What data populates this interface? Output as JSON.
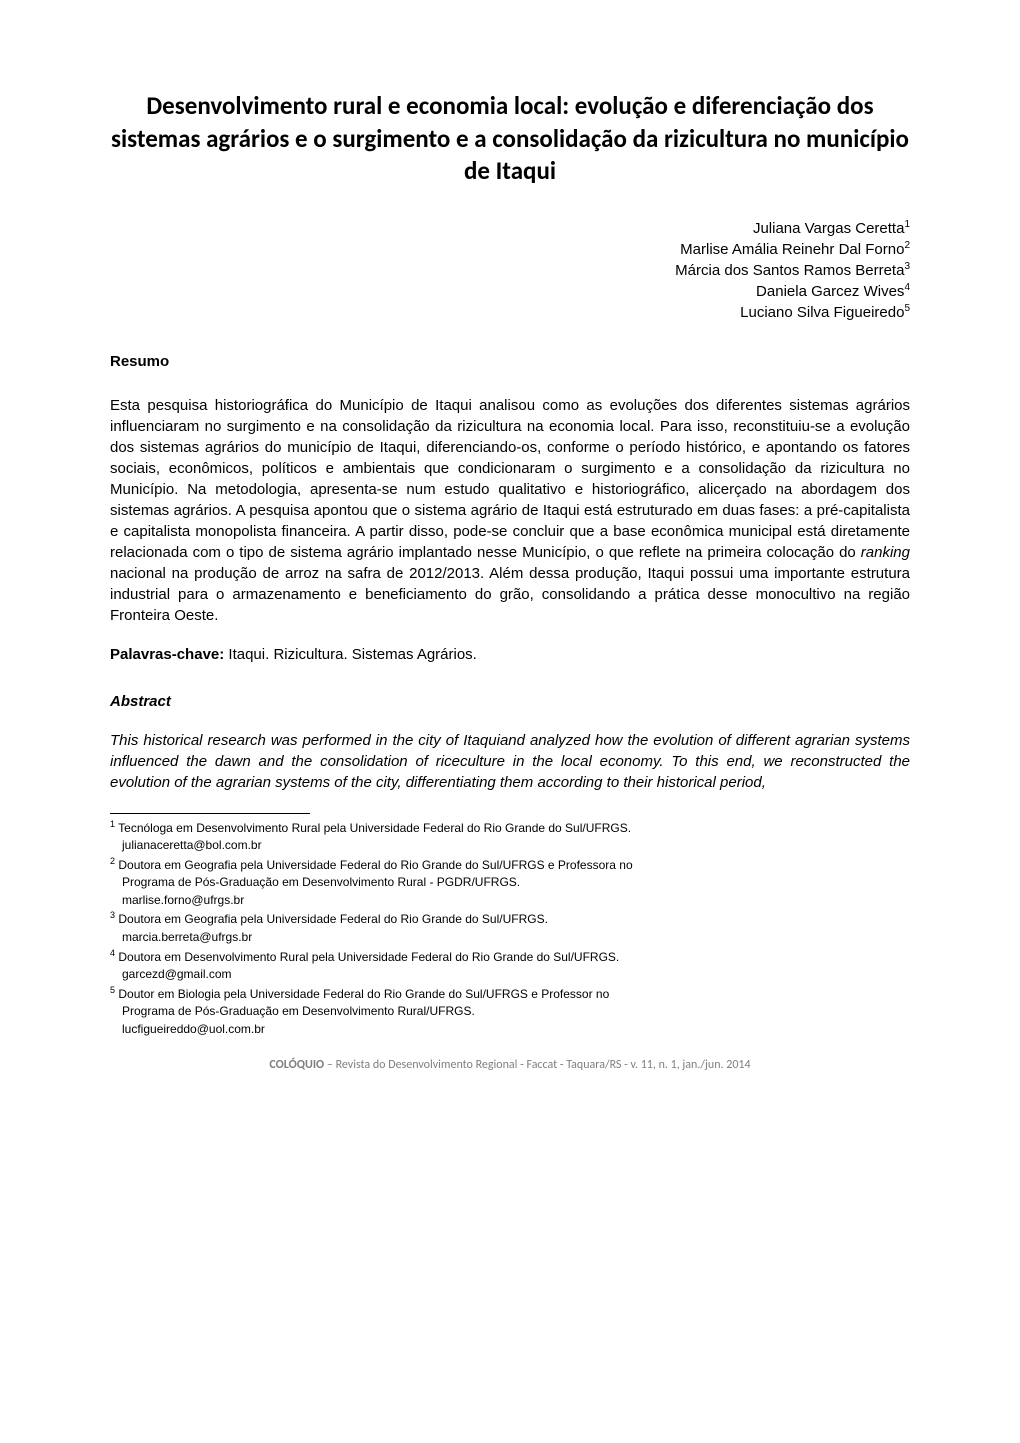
{
  "title": "Desenvolvimento rural e economia local: evolução e diferenciação dos sistemas agrários e o surgimento e a consolidação da rizicultura no município de Itaqui",
  "authors": [
    {
      "name": "Juliana Vargas Ceretta",
      "sup": "1"
    },
    {
      "name": "Marlise Amália Reinehr Dal Forno",
      "sup": "2"
    },
    {
      "name": "Márcia dos Santos Ramos Berreta",
      "sup": "3"
    },
    {
      "name": "Daniela Garcez Wives",
      "sup": "4"
    },
    {
      "name": "Luciano Silva Figueiredo",
      "sup": "5"
    }
  ],
  "resumo": {
    "heading": "Resumo",
    "text_part1": "Esta pesquisa historiográfica do Município de Itaqui analisou como as evoluções dos diferentes sistemas agrários influenciaram no surgimento e na consolidação da rizicultura na economia local. Para isso, reconstituiu-se a evolução dos sistemas agrários do município de Itaqui, diferenciando-os, conforme o período histórico, e apontando os fatores sociais, econômicos, políticos e ambientais que condicionaram o surgimento e a consolidação da rizicultura no Município. Na metodologia, apresenta-se num estudo qualitativo e historiográfico, alicerçado na abordagem dos sistemas agrários. A pesquisa apontou que o sistema agrário de Itaqui está estruturado em duas fases: a pré-capitalista e capitalista monopolista financeira. A partir disso, pode-se concluir que a base econômica municipal está diretamente relacionada com o tipo de sistema agrário implantado nesse Município, o que reflete na primeira colocação do ",
    "text_italic": "ranking",
    "text_part2": " nacional na produção de arroz na safra de 2012/2013. Além dessa produção, Itaqui possui uma importante estrutura industrial para o armazenamento e beneficiamento do grão, consolidando a prática desse monocultivo na região Fronteira Oeste."
  },
  "keywords": {
    "label": "Palavras-chave:",
    "text": " Itaqui. Rizicultura. Sistemas Agrários."
  },
  "abstract": {
    "heading": "Abstract",
    "text": "This historical research was performed in the city of Itaquiand analyzed how the evolution of different agrarian systems influenced the dawn and the consolidation of riceculture in the local economy. To this end, we reconstructed the evolution of the agrarian systems of the city, differentiating them according to their historical period,"
  },
  "footnotes": [
    {
      "num": "1",
      "lines": [
        "Tecnóloga em Desenvolvimento Rural pela Universidade Federal do Rio Grande do Sul/UFRGS.",
        "julianaceretta@bol.com.br"
      ]
    },
    {
      "num": "2",
      "lines": [
        "Doutora em Geografia pela Universidade Federal do Rio Grande do Sul/UFRGS e Professora no",
        "Programa de Pós-Graduação em Desenvolvimento Rural - PGDR/UFRGS.",
        "marlise.forno@ufrgs.br"
      ]
    },
    {
      "num": "3",
      "lines": [
        "Doutora em Geografia pela Universidade Federal do Rio Grande do Sul/UFRGS.",
        "marcia.berreta@ufrgs.br"
      ]
    },
    {
      "num": "4",
      "lines": [
        "Doutora em Desenvolvimento Rural pela Universidade Federal do Rio Grande do Sul/UFRGS.",
        "garcezd@gmail.com"
      ]
    },
    {
      "num": "5",
      "lines": [
        "Doutor em Biologia pela Universidade Federal do Rio Grande do Sul/UFRGS e Professor no",
        "Programa de Pós-Graduação em Desenvolvimento Rural/UFRGS.",
        "lucfigueireddo@uol.com.br"
      ]
    }
  ],
  "footer": {
    "bold": "COLÓQUIO",
    "rest": " – Revista do Desenvolvimento Regional - Faccat - Taquara/RS - v. 11, n. 1, jan./jun. 2014"
  },
  "colors": {
    "text": "#000000",
    "background": "#ffffff",
    "footer_text": "#7f7f7f",
    "separator": "#000000"
  },
  "typography": {
    "title_fontsize": 25,
    "body_fontsize": 15,
    "footnote_fontsize": 12,
    "footer_fontsize": 12,
    "title_font": "Calibri",
    "body_font": "Arial"
  }
}
